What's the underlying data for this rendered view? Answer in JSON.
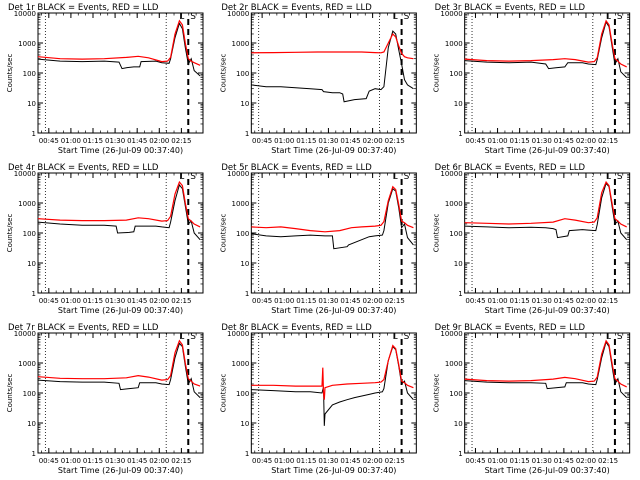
{
  "shared": {
    "x_ticks": [
      "00:45",
      "01:00",
      "01:15",
      "01:30",
      "01:45",
      "02:00",
      "02:15"
    ],
    "y_ticks": [
      "1",
      "10",
      "100",
      "1000",
      "10000"
    ],
    "xlabel": "Start Time (26-Jul-09 00:37:40)",
    "ylabel": "Counts/sec",
    "markers": [
      "L",
      "S"
    ],
    "colors": {
      "events": "#000000",
      "lld": "#ff0000"
    }
  },
  "chart_data": [
    {
      "type": "line",
      "title": "Det 1r BLACK = Events, RED = LLD",
      "x_unit": "minutes after 00:37:40",
      "ylog": true,
      "ylim": [
        1,
        10000
      ],
      "vlines_dotted": [
        5,
        87
      ],
      "vline_dashed": 102,
      "series": [
        {
          "name": "Events",
          "color": "#000000",
          "x": [
            0,
            15,
            30,
            45,
            55,
            57,
            60,
            65,
            69,
            70,
            80,
            84,
            89,
            90,
            93,
            96,
            98,
            100,
            102,
            104,
            106,
            110
          ],
          "y": [
            290,
            250,
            240,
            250,
            230,
            140,
            150,
            160,
            160,
            240,
            250,
            220,
            210,
            300,
            1500,
            4500,
            3000,
            700,
            200,
            300,
            120,
            80
          ]
        },
        {
          "name": "LLD",
          "color": "#ff0000",
          "x": [
            0,
            15,
            30,
            45,
            60,
            68,
            75,
            84,
            88,
            90,
            93,
            96,
            98,
            100,
            102,
            104,
            106,
            110
          ],
          "y": [
            350,
            300,
            290,
            300,
            330,
            360,
            320,
            240,
            250,
            330,
            2000,
            5500,
            4000,
            1000,
            300,
            250,
            220,
            180
          ]
        }
      ]
    },
    {
      "type": "line",
      "title": "Det 2r BLACK = Events, RED = LLD",
      "x_unit": "minutes after 00:37:40",
      "ylog": true,
      "ylim": [
        1,
        10000
      ],
      "vlines_dotted": [
        5,
        87
      ],
      "vline_dashed": 102,
      "series": [
        {
          "name": "Events",
          "color": "#000000",
          "x": [
            0,
            10,
            20,
            30,
            40,
            48,
            49,
            55,
            60,
            62,
            63,
            70,
            78,
            80,
            84,
            88,
            90,
            93,
            96,
            98,
            100,
            102,
            104,
            106,
            110
          ],
          "y": [
            40,
            35,
            35,
            32,
            30,
            28,
            24,
            22,
            22,
            20,
            11,
            13,
            14,
            25,
            30,
            28,
            35,
            700,
            2500,
            2000,
            600,
            200,
            60,
            40,
            30
          ]
        },
        {
          "name": "LLD",
          "color": "#ff0000",
          "x": [
            0,
            15,
            30,
            45,
            60,
            75,
            84,
            88,
            90,
            93,
            96,
            98,
            100,
            102,
            104,
            106,
            110
          ],
          "y": [
            470,
            480,
            490,
            500,
            500,
            500,
            480,
            470,
            500,
            1000,
            2000,
            1600,
            800,
            450,
            350,
            320,
            300
          ]
        }
      ]
    },
    {
      "type": "line",
      "title": "Det 3r BLACK = Events, RED = LLD",
      "x_unit": "minutes after 00:37:40",
      "ylog": true,
      "ylim": [
        1,
        10000
      ],
      "vlines_dotted": [
        5,
        87
      ],
      "vline_dashed": 102,
      "series": [
        {
          "name": "Events",
          "color": "#000000",
          "x": [
            0,
            15,
            30,
            45,
            55,
            57,
            62,
            68,
            70,
            80,
            84,
            89,
            90,
            93,
            96,
            98,
            100,
            102,
            104,
            106,
            110
          ],
          "y": [
            260,
            230,
            220,
            230,
            200,
            140,
            150,
            160,
            220,
            220,
            200,
            190,
            280,
            1500,
            5000,
            3500,
            800,
            200,
            300,
            110,
            70
          ]
        },
        {
          "name": "LLD",
          "color": "#ff0000",
          "x": [
            0,
            15,
            30,
            45,
            60,
            68,
            75,
            84,
            88,
            90,
            93,
            96,
            98,
            100,
            102,
            104,
            106,
            110
          ],
          "y": [
            290,
            260,
            250,
            260,
            280,
            300,
            280,
            230,
            240,
            320,
            2000,
            5500,
            4000,
            1000,
            300,
            250,
            200,
            160
          ]
        }
      ]
    },
    {
      "type": "line",
      "title": "Det 4r BLACK = Events, RED = LLD",
      "x_unit": "minutes after 00:37:40",
      "ylog": true,
      "ylim": [
        1,
        10000
      ],
      "vlines_dotted": [
        5,
        87
      ],
      "vline_dashed": 102,
      "series": [
        {
          "name": "Events",
          "color": "#000000",
          "x": [
            0,
            15,
            30,
            45,
            53,
            54,
            62,
            65,
            66,
            80,
            84,
            89,
            90,
            93,
            96,
            98,
            100,
            102,
            104,
            106,
            110
          ],
          "y": [
            230,
            200,
            180,
            180,
            170,
            100,
            105,
            110,
            170,
            170,
            160,
            150,
            230,
            1200,
            4000,
            3000,
            800,
            200,
            250,
            100,
            60
          ]
        },
        {
          "name": "LLD",
          "color": "#ff0000",
          "x": [
            0,
            15,
            30,
            45,
            60,
            68,
            75,
            84,
            88,
            90,
            93,
            96,
            98,
            100,
            102,
            104,
            106,
            110
          ],
          "y": [
            300,
            270,
            260,
            260,
            270,
            320,
            300,
            250,
            260,
            360,
            2000,
            5000,
            3800,
            1000,
            300,
            250,
            200,
            160
          ]
        }
      ]
    },
    {
      "type": "line",
      "title": "Det 5r BLACK = Events, RED = LLD",
      "x_unit": "minutes after 00:37:40",
      "ylog": true,
      "ylim": [
        1,
        10000
      ],
      "vlines_dotted": [
        5,
        87
      ],
      "vline_dashed": 102,
      "series": [
        {
          "name": "Events",
          "color": "#000000",
          "x": [
            0,
            10,
            20,
            30,
            40,
            50,
            55,
            56,
            65,
            66,
            80,
            84,
            89,
            90,
            93,
            96,
            98,
            100,
            102,
            104,
            106,
            110
          ],
          "y": [
            95,
            80,
            75,
            80,
            85,
            80,
            80,
            30,
            35,
            40,
            75,
            80,
            85,
            120,
            1000,
            3000,
            2500,
            700,
            150,
            200,
            70,
            40
          ]
        },
        {
          "name": "LLD",
          "color": "#ff0000",
          "x": [
            0,
            10,
            20,
            30,
            40,
            50,
            60,
            68,
            75,
            84,
            88,
            90,
            93,
            96,
            98,
            100,
            102,
            104,
            106,
            110
          ],
          "y": [
            160,
            150,
            160,
            140,
            120,
            110,
            120,
            150,
            160,
            170,
            180,
            240,
            1200,
            3500,
            2800,
            900,
            250,
            220,
            180,
            150
          ]
        }
      ]
    },
    {
      "type": "line",
      "title": "Det 6r BLACK = Events, RED = LLD",
      "x_unit": "minutes after 00:37:40",
      "ylog": true,
      "ylim": [
        1,
        10000
      ],
      "vlines_dotted": [
        5,
        87
      ],
      "vline_dashed": 102,
      "series": [
        {
          "name": "Events",
          "color": "#000000",
          "x": [
            0,
            15,
            30,
            45,
            55,
            60,
            62,
            63,
            70,
            71,
            80,
            84,
            89,
            90,
            93,
            96,
            98,
            100,
            102,
            104,
            106,
            110
          ],
          "y": [
            170,
            160,
            150,
            155,
            150,
            140,
            130,
            70,
            80,
            120,
            130,
            125,
            120,
            190,
            1500,
            4500,
            3500,
            800,
            200,
            250,
            100,
            60
          ]
        },
        {
          "name": "LLD",
          "color": "#ff0000",
          "x": [
            0,
            15,
            30,
            45,
            60,
            68,
            75,
            84,
            88,
            90,
            93,
            96,
            98,
            100,
            102,
            104,
            106,
            110
          ],
          "y": [
            220,
            210,
            200,
            210,
            230,
            300,
            270,
            220,
            230,
            320,
            2200,
            5000,
            3800,
            1000,
            300,
            250,
            200,
            160
          ]
        }
      ]
    },
    {
      "type": "line",
      "title": "Det 7r BLACK = Events, RED = LLD",
      "x_unit": "minutes after 00:37:40",
      "ylog": true,
      "ylim": [
        1,
        10000
      ],
      "vlines_dotted": [
        5,
        87
      ],
      "vline_dashed": 102,
      "series": [
        {
          "name": "Events",
          "color": "#000000",
          "x": [
            0,
            15,
            30,
            45,
            55,
            56,
            62,
            68,
            69,
            80,
            84,
            89,
            90,
            93,
            96,
            98,
            100,
            102,
            104,
            106,
            110
          ],
          "y": [
            270,
            240,
            230,
            230,
            210,
            130,
            140,
            150,
            220,
            220,
            200,
            190,
            280,
            1500,
            4500,
            3500,
            800,
            200,
            300,
            110,
            70
          ]
        },
        {
          "name": "LLD",
          "color": "#ff0000",
          "x": [
            0,
            15,
            30,
            45,
            60,
            68,
            75,
            84,
            88,
            90,
            93,
            96,
            98,
            100,
            102,
            104,
            106,
            110
          ],
          "y": [
            350,
            310,
            300,
            300,
            320,
            380,
            340,
            270,
            280,
            380,
            2200,
            5500,
            4000,
            1000,
            300,
            250,
            200,
            170
          ]
        }
      ]
    },
    {
      "type": "line",
      "title": "Det 8r BLACK = Events, RED = LLD",
      "x_unit": "minutes after 00:37:40",
      "ylog": true,
      "ylim": [
        1,
        10000
      ],
      "vlines_dotted": [
        5,
        87
      ],
      "vline_dashed": 102,
      "series": [
        {
          "name": "Events",
          "color": "#000000",
          "x": [
            0,
            15,
            30,
            40,
            48,
            49,
            49.5,
            50,
            55,
            60,
            65,
            70,
            80,
            84,
            89,
            90,
            93,
            96,
            98,
            100,
            102,
            104,
            106,
            110
          ],
          "y": [
            130,
            120,
            110,
            110,
            100,
            160,
            8,
            20,
            40,
            50,
            60,
            70,
            90,
            100,
            110,
            140,
            1200,
            3500,
            2800,
            800,
            200,
            250,
            100,
            60
          ]
        },
        {
          "name": "LLD",
          "color": "#ff0000",
          "x": [
            0,
            15,
            30,
            40,
            48,
            48.5,
            49,
            49.5,
            50,
            55,
            65,
            75,
            84,
            88,
            90,
            93,
            96,
            98,
            100,
            102,
            104,
            106,
            110
          ],
          "y": [
            180,
            180,
            170,
            170,
            170,
            700,
            100,
            60,
            150,
            180,
            200,
            210,
            220,
            230,
            280,
            1200,
            3800,
            3000,
            900,
            250,
            220,
            180,
            150
          ]
        }
      ]
    },
    {
      "type": "line",
      "title": "Det 9r BLACK = Events, RED = LLD",
      "x_unit": "minutes after 00:37:40",
      "ylog": true,
      "ylim": [
        1,
        10000
      ],
      "vlines_dotted": [
        5,
        87
      ],
      "vline_dashed": 102,
      "series": [
        {
          "name": "Events",
          "color": "#000000",
          "x": [
            0,
            15,
            30,
            45,
            55,
            56,
            62,
            68,
            69,
            80,
            84,
            89,
            90,
            93,
            96,
            98,
            100,
            102,
            104,
            106,
            110
          ],
          "y": [
            260,
            230,
            220,
            220,
            210,
            140,
            150,
            160,
            220,
            220,
            200,
            190,
            280,
            1500,
            5000,
            3500,
            800,
            200,
            300,
            110,
            70
          ]
        },
        {
          "name": "LLD",
          "color": "#ff0000",
          "x": [
            0,
            15,
            30,
            45,
            60,
            68,
            75,
            84,
            88,
            90,
            93,
            96,
            98,
            100,
            102,
            104,
            106,
            110
          ],
          "y": [
            290,
            260,
            250,
            260,
            290,
            330,
            300,
            240,
            250,
            340,
            2000,
            5500,
            4000,
            1000,
            300,
            250,
            200,
            160
          ]
        }
      ]
    }
  ]
}
